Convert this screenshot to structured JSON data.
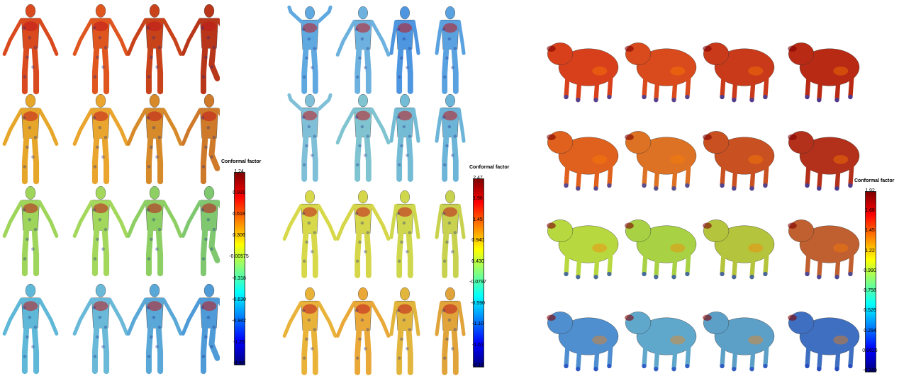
{
  "panels": [
    {
      "id": "female",
      "colorbar": {
        "title": "Conformal factor",
        "ticks": [
          "1.24",
          "0.931",
          "0.618",
          "0.306",
          "-0.00575",
          "-0.318",
          "-0.630",
          "-0.942",
          "-1.25",
          "-1.57"
        ]
      }
    },
    {
      "id": "male",
      "colorbar": {
        "title": "Conformal factor",
        "ticks": [
          "2.47",
          "1.96",
          "1.45",
          "0.940",
          "0.430",
          "-0.0797",
          "-0.590",
          "-1.10",
          "-1.61",
          "-2.12"
        ]
      }
    },
    {
      "id": "animal",
      "colorbar": {
        "title": "Conformal factor",
        "ticks": [
          "1.92",
          "1.68",
          "1.45",
          "1.22",
          "0.990",
          "0.758",
          "0.526",
          "0.294",
          "0.0626",
          "-0.169"
        ]
      }
    }
  ],
  "colormap": [
    "#00007f",
    "#0000ff",
    "#0080ff",
    "#00ffff",
    "#80ff80",
    "#ffff00",
    "#ff8000",
    "#ff0000",
    "#7f0000"
  ],
  "rows": 4,
  "cols": 4,
  "shape_colors": {
    "female": [
      [
        "#d94a1e",
        "#e0561f",
        "#c8421a",
        "#b8361a"
      ],
      [
        "#e6a62a",
        "#e9a52e",
        "#d68a2a",
        "#cf7a2a"
      ],
      [
        "#9ed55a",
        "#a4d85c",
        "#8ecf63",
        "#7fc870"
      ],
      [
        "#5fb8d8",
        "#6ab9d8",
        "#5aa8d8",
        "#4f9bd8"
      ]
    ],
    "male": [
      [
        "#5fa8e0",
        "#6db2df",
        "#4e96e0",
        "#5aa1e0"
      ],
      [
        "#7fc0d8",
        "#7fc4d0",
        "#74bcd5",
        "#6cb4d8"
      ],
      [
        "#d7d94a",
        "#d6d64a",
        "#cfd84c",
        "#c8d24e"
      ],
      [
        "#e9b33a",
        "#e9a838",
        "#e2b53c",
        "#e0a43a"
      ]
    ],
    "animal": [
      [
        "#d8401c",
        "#d94a1c",
        "#c93a1a",
        "#b82a14"
      ],
      [
        "#e0601e",
        "#dd7224",
        "#c95020",
        "#b3301a"
      ],
      [
        "#b8d840",
        "#a8d244",
        "#b4c43c",
        "#c06030"
      ],
      [
        "#4f8fd0",
        "#5fa8cc",
        "#5ca0c8",
        "#3f6fc0"
      ]
    ]
  }
}
